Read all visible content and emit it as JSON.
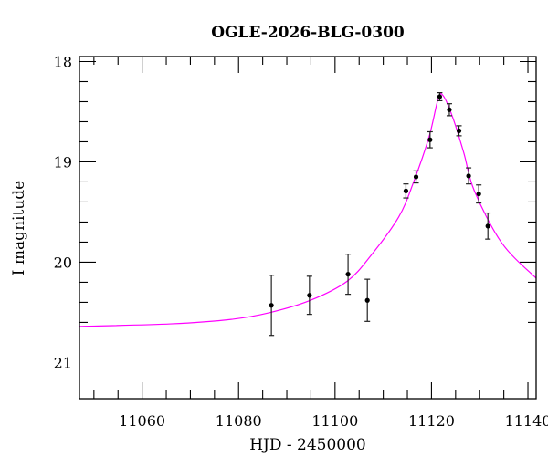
{
  "chart_data": {
    "type": "scatter",
    "title": "OGLE-2026-BLG-0300",
    "xlabel": "HJD - 2450000",
    "ylabel": "I magnitude",
    "xlim": [
      11047,
      11141.7
    ],
    "ylim": [
      17.95,
      21.36
    ],
    "y_inverted": true,
    "x_ticks": [
      11060,
      11080,
      11100,
      11120,
      11140
    ],
    "x_tick_labels": [
      "11060",
      "11080",
      "11100",
      "11120",
      "11140"
    ],
    "y_ticks": [
      18,
      19,
      20,
      21
    ],
    "y_tick_labels": [
      "18",
      "19",
      "20",
      "21"
    ],
    "x_minor_step": 5,
    "y_minor_step": 0.2,
    "grid": false,
    "colors": {
      "model": "#ff00ff",
      "points": "#000000"
    },
    "series": [
      {
        "type": "scatter-errorbar",
        "x": [
          11086.8,
          11094.7,
          11102.7,
          11106.7,
          11114.7,
          11116.8,
          11119.7,
          11121.7,
          11123.7,
          11125.7,
          11127.7,
          11129.8,
          11131.7
        ],
        "y": [
          20.43,
          20.33,
          20.12,
          20.38,
          19.29,
          19.15,
          18.78,
          18.35,
          18.48,
          18.69,
          19.14,
          19.32,
          19.64
        ],
        "yerr": [
          0.3,
          0.19,
          0.2,
          0.21,
          0.07,
          0.06,
          0.08,
          0.04,
          0.06,
          0.05,
          0.08,
          0.09,
          0.13
        ]
      },
      {
        "type": "line",
        "x": [
          11047,
          11065.9,
          11078.5,
          11086.7,
          11094.9,
          11102.5,
          11107.5,
          11113.2,
          11116.3,
          11119.5,
          11121.4,
          11122.5,
          11124.5,
          11126.7,
          11128.9,
          11134.6,
          11141.7
        ],
        "y": [
          20.64,
          20.615,
          20.57,
          20.5,
          20.38,
          20.19,
          19.93,
          19.55,
          19.2,
          18.75,
          18.37,
          18.345,
          18.57,
          18.91,
          19.29,
          19.81,
          20.16
        ]
      }
    ]
  }
}
